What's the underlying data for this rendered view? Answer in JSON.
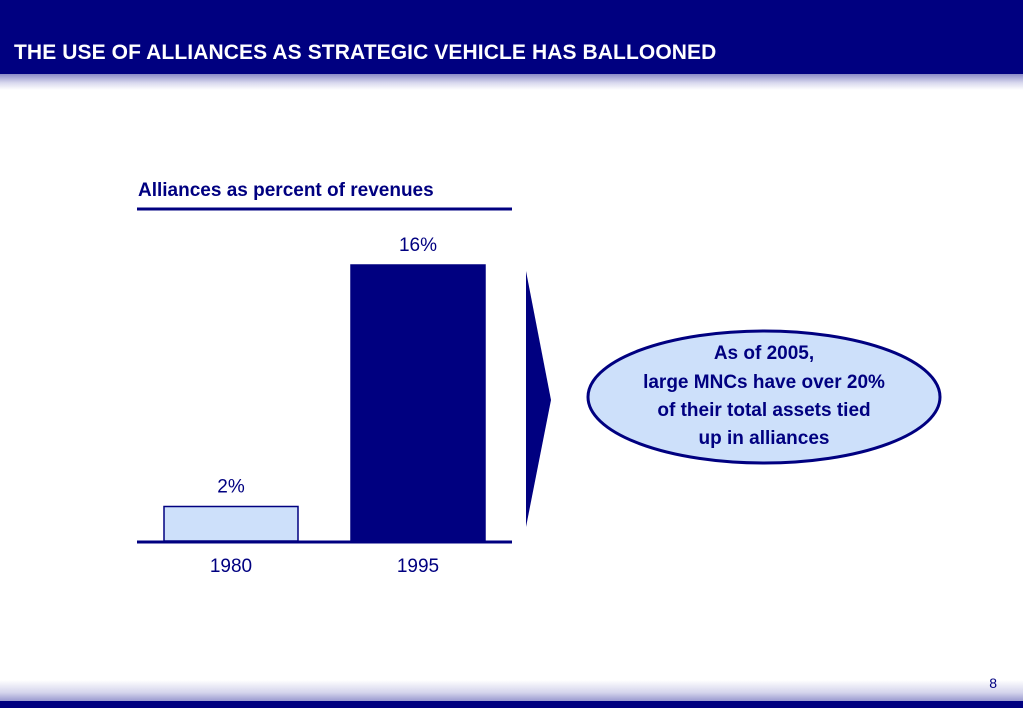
{
  "slide": {
    "title": "THE USE OF ALLIANCES AS STRATEGIC VEHICLE HAS BALLOONED",
    "page_number": "8"
  },
  "colors": {
    "brand_navy": "#000080",
    "bar_light": "#cde0fa",
    "callout_fill": "#cde0fa"
  },
  "chart_data": {
    "type": "bar",
    "title": "Alliances as percent of revenues",
    "categories": [
      "1980",
      "1995"
    ],
    "values": [
      2,
      16
    ],
    "value_labels": [
      "2%",
      "16%"
    ],
    "ylim": [
      0,
      16
    ],
    "xlabel": "",
    "ylabel": "",
    "grid": false
  },
  "callout": {
    "lines": [
      "As of 2005,",
      "large MNCs have over 20%",
      "of their total assets tied",
      "up in alliances"
    ]
  }
}
